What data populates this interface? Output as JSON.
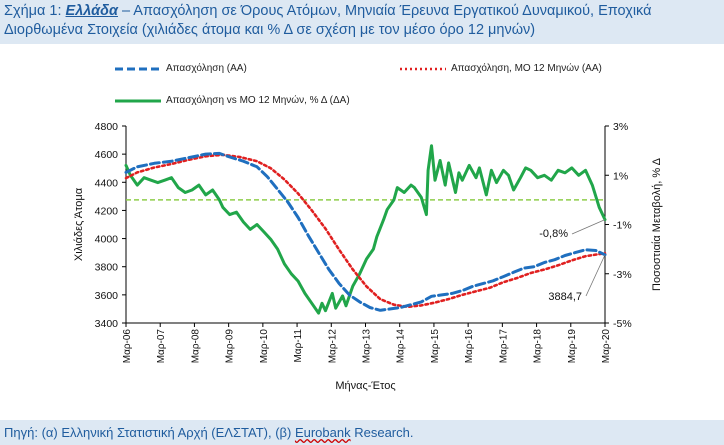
{
  "caption": {
    "prefix": "Σχήμα 1: ",
    "country": "Ελλάδα",
    "rest": " – Απασχόληση σε Όρους Ατόμων, Μηνιαία Έρευνα Εργατικού Δυναμικού, Εποχικά Διορθωμένα Στοιχεία (χιλιάδες άτομα και % Δ σε σχέση με τον μέσο όρο 12 μηνών)"
  },
  "source": {
    "prefix": "Πηγή: (α) Ελληνική Στατιστική Αρχή (ΕΛΣΤΑΤ), (β) ",
    "squiggle": "Eurobank",
    "suffix": " Research."
  },
  "colors": {
    "employment": "#1f6fbf",
    "ma12": "#e02020",
    "pct": "#21a64a",
    "zero_line": "#8fce4a"
  },
  "chart_data": {
    "type": "line",
    "xlabel": "Μήνας-Έτος",
    "ylabel_left": "Χιλιάδες Άτομα",
    "ylabel_right": "Ποσοστιαία Μεταβολή, % Δ",
    "ylim_left": [
      3400,
      4800
    ],
    "ylim_right": [
      -5,
      3
    ],
    "yticks_left": [
      "4800",
      "4600",
      "4400",
      "4200",
      "4000",
      "3800",
      "3600",
      "3400"
    ],
    "yticks_right": [
      "3%",
      "1%",
      "-1%",
      "-3%",
      "-5%"
    ],
    "x_ticks": [
      "Μαρ-06",
      "Μαρ-07",
      "Μαρ-08",
      "Μαρ-09",
      "Μαρ-10",
      "Μαρ-11",
      "Μαρ-12",
      "Μαρ-13",
      "Μαρ-14",
      "Μαρ-15",
      "Μαρ-16",
      "Μαρ-17",
      "Μαρ-18",
      "Μαρ-19",
      "Μαρ-20"
    ],
    "legend": [
      {
        "name": "Απασχόληση (ΑΑ)",
        "style": "dashed"
      },
      {
        "name": "Απασχόληση, ΜΟ 12 Μηνών (ΑΑ)",
        "style": "dotted"
      },
      {
        "name": "Απασχόληση vs ΜΟ 12 Μηνών, % Δ (ΔΑ)",
        "style": "solid"
      }
    ],
    "annotations": [
      {
        "text": "-0,8%",
        "series": "pct",
        "x": 2020.17
      },
      {
        "text": "3884,7",
        "series": "employment",
        "x": 2020.17
      }
    ],
    "series": [
      {
        "name": "Απασχόληση (ΑΑ)",
        "axis": "left",
        "style": "dashed",
        "points": [
          [
            2006.17,
            4470
          ],
          [
            2006.5,
            4510
          ],
          [
            2007.0,
            4535
          ],
          [
            2007.5,
            4550
          ],
          [
            2008.0,
            4575
          ],
          [
            2008.5,
            4600
          ],
          [
            2008.9,
            4605
          ],
          [
            2009.2,
            4580
          ],
          [
            2009.6,
            4550
          ],
          [
            2010.0,
            4510
          ],
          [
            2010.3,
            4440
          ],
          [
            2010.6,
            4350
          ],
          [
            2010.9,
            4260
          ],
          [
            2011.2,
            4150
          ],
          [
            2011.5,
            4020
          ],
          [
            2011.8,
            3900
          ],
          [
            2012.1,
            3780
          ],
          [
            2012.4,
            3680
          ],
          [
            2012.7,
            3600
          ],
          [
            2013.0,
            3550
          ],
          [
            2013.3,
            3510
          ],
          [
            2013.6,
            3490
          ],
          [
            2013.9,
            3500
          ],
          [
            2014.2,
            3510
          ],
          [
            2014.5,
            3530
          ],
          [
            2014.8,
            3550
          ],
          [
            2015.1,
            3590
          ],
          [
            2015.4,
            3600
          ],
          [
            2015.7,
            3610
          ],
          [
            2016.0,
            3630
          ],
          [
            2016.3,
            3660
          ],
          [
            2016.6,
            3680
          ],
          [
            2016.9,
            3700
          ],
          [
            2017.2,
            3730
          ],
          [
            2017.5,
            3760
          ],
          [
            2017.8,
            3790
          ],
          [
            2018.1,
            3800
          ],
          [
            2018.4,
            3830
          ],
          [
            2018.7,
            3850
          ],
          [
            2019.0,
            3880
          ],
          [
            2019.3,
            3900
          ],
          [
            2019.6,
            3920
          ],
          [
            2019.9,
            3915
          ],
          [
            2020.17,
            3885
          ]
        ]
      },
      {
        "name": "Απασχόληση, ΜΟ 12 Μηνών (ΑΑ)",
        "axis": "left",
        "style": "dotted",
        "points": [
          [
            2006.17,
            4430
          ],
          [
            2006.5,
            4470
          ],
          [
            2007.0,
            4505
          ],
          [
            2007.5,
            4530
          ],
          [
            2008.0,
            4560
          ],
          [
            2008.5,
            4585
          ],
          [
            2009.0,
            4595
          ],
          [
            2009.5,
            4580
          ],
          [
            2010.0,
            4550
          ],
          [
            2010.4,
            4500
          ],
          [
            2010.8,
            4420
          ],
          [
            2011.2,
            4320
          ],
          [
            2011.6,
            4200
          ],
          [
            2012.0,
            4070
          ],
          [
            2012.4,
            3920
          ],
          [
            2012.8,
            3780
          ],
          [
            2013.2,
            3660
          ],
          [
            2013.6,
            3570
          ],
          [
            2014.0,
            3530
          ],
          [
            2014.4,
            3515
          ],
          [
            2014.8,
            3525
          ],
          [
            2015.2,
            3545
          ],
          [
            2015.6,
            3570
          ],
          [
            2016.0,
            3600
          ],
          [
            2016.4,
            3625
          ],
          [
            2016.8,
            3650
          ],
          [
            2017.2,
            3690
          ],
          [
            2017.6,
            3720
          ],
          [
            2018.0,
            3755
          ],
          [
            2018.4,
            3780
          ],
          [
            2018.8,
            3810
          ],
          [
            2019.2,
            3845
          ],
          [
            2019.6,
            3875
          ],
          [
            2020.0,
            3890
          ],
          [
            2020.17,
            3895
          ]
        ]
      },
      {
        "name": "Απασχόληση vs ΜΟ 12 Μηνών, % Δ (ΔΑ)",
        "axis": "right",
        "style": "solid",
        "points": [
          [
            2006.17,
            1.4
          ],
          [
            2006.3,
            1.0
          ],
          [
            2006.5,
            0.6
          ],
          [
            2006.7,
            0.9
          ],
          [
            2006.9,
            0.8
          ],
          [
            2007.1,
            0.7
          ],
          [
            2007.3,
            0.8
          ],
          [
            2007.5,
            0.9
          ],
          [
            2007.7,
            0.5
          ],
          [
            2007.9,
            0.3
          ],
          [
            2008.1,
            0.4
          ],
          [
            2008.3,
            0.6
          ],
          [
            2008.5,
            0.2
          ],
          [
            2008.7,
            0.4
          ],
          [
            2008.9,
            0.0
          ],
          [
            2009.0,
            -0.3
          ],
          [
            2009.2,
            -0.6
          ],
          [
            2009.4,
            -0.5
          ],
          [
            2009.6,
            -0.9
          ],
          [
            2009.8,
            -1.2
          ],
          [
            2010.0,
            -1.0
          ],
          [
            2010.2,
            -1.3
          ],
          [
            2010.4,
            -1.6
          ],
          [
            2010.6,
            -2.0
          ],
          [
            2010.8,
            -2.6
          ],
          [
            2011.0,
            -3.0
          ],
          [
            2011.2,
            -3.3
          ],
          [
            2011.4,
            -3.8
          ],
          [
            2011.6,
            -4.2
          ],
          [
            2011.8,
            -4.6
          ],
          [
            2011.9,
            -4.2
          ],
          [
            2012.0,
            -4.5
          ],
          [
            2012.2,
            -3.8
          ],
          [
            2012.3,
            -4.4
          ],
          [
            2012.5,
            -3.9
          ],
          [
            2012.6,
            -4.3
          ],
          [
            2012.8,
            -3.5
          ],
          [
            2013.0,
            -3.0
          ],
          [
            2013.2,
            -2.4
          ],
          [
            2013.4,
            -2.0
          ],
          [
            2013.5,
            -1.5
          ],
          [
            2013.7,
            -0.8
          ],
          [
            2013.8,
            -0.4
          ],
          [
            2014.0,
            0.0
          ],
          [
            2014.1,
            0.5
          ],
          [
            2014.3,
            0.3
          ],
          [
            2014.5,
            0.6
          ],
          [
            2014.6,
            0.5
          ],
          [
            2014.8,
            0.1
          ],
          [
            2014.95,
            -0.6
          ],
          [
            2015.0,
            1.2
          ],
          [
            2015.1,
            2.2
          ],
          [
            2015.2,
            0.8
          ],
          [
            2015.35,
            1.6
          ],
          [
            2015.5,
            0.6
          ],
          [
            2015.6,
            1.5
          ],
          [
            2015.8,
            0.3
          ],
          [
            2015.9,
            1.1
          ],
          [
            2016.0,
            0.8
          ],
          [
            2016.2,
            1.4
          ],
          [
            2016.4,
            0.9
          ],
          [
            2016.5,
            1.3
          ],
          [
            2016.7,
            0.2
          ],
          [
            2016.85,
            1.2
          ],
          [
            2017.0,
            0.7
          ],
          [
            2017.2,
            1.2
          ],
          [
            2017.35,
            1.0
          ],
          [
            2017.5,
            0.4
          ],
          [
            2017.7,
            0.9
          ],
          [
            2017.85,
            1.3
          ],
          [
            2018.0,
            1.2
          ],
          [
            2018.2,
            0.9
          ],
          [
            2018.4,
            1.0
          ],
          [
            2018.6,
            0.8
          ],
          [
            2018.8,
            1.2
          ],
          [
            2019.0,
            1.1
          ],
          [
            2019.2,
            1.3
          ],
          [
            2019.4,
            1.0
          ],
          [
            2019.6,
            1.2
          ],
          [
            2019.8,
            0.6
          ],
          [
            2020.0,
            -0.3
          ],
          [
            2020.17,
            -0.8
          ]
        ]
      }
    ],
    "reference_line": {
      "axis": "right",
      "value": 0
    }
  }
}
